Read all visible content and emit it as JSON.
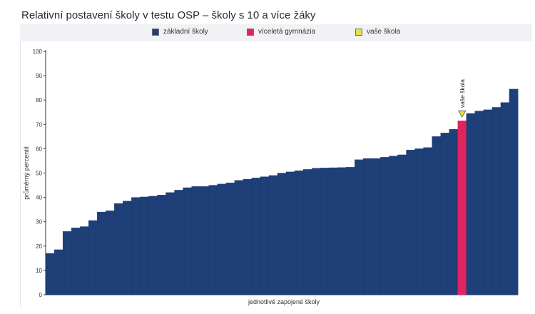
{
  "chart_data": {
    "type": "bar",
    "title": "Relativní postavení školy v testu OSP – školy s 10 a více žáky",
    "xlabel": "jednotlivé zapojené školy",
    "ylabel": "průměrný percentil",
    "ylim": [
      0,
      100
    ],
    "yticks": [
      0,
      10,
      20,
      30,
      40,
      50,
      60,
      70,
      80,
      90,
      100
    ],
    "legend": [
      {
        "label": "základní školy",
        "color": "#1f3f78"
      },
      {
        "label": "víceletá gymnázia",
        "color": "#e0245e"
      },
      {
        "label": "vaše škola",
        "color": "#e6e23a"
      }
    ],
    "annotation": "vaše škola",
    "series": [
      {
        "colors_by_type": {
          "zs": "#1f3f78",
          "gym": "#e0245e"
        },
        "values": [
          17,
          18.5,
          26,
          27.5,
          28,
          30.5,
          34,
          34.5,
          37.5,
          38.5,
          40,
          40.2,
          40.5,
          41,
          42,
          43,
          44,
          44.5,
          44.5,
          45,
          45.5,
          46,
          47,
          47.5,
          48,
          48.5,
          49,
          50,
          50.5,
          51,
          51.5,
          52,
          52.1,
          52.2,
          52.3,
          52.4,
          55.5,
          56,
          56,
          56.5,
          57,
          57.5,
          59.5,
          60,
          60.5,
          65,
          66.5,
          68,
          71.5,
          74.5,
          75.5,
          76,
          77,
          79,
          84.5
        ],
        "types": [
          "zs",
          "zs",
          "zs",
          "zs",
          "zs",
          "zs",
          "zs",
          "zs",
          "zs",
          "zs",
          "zs",
          "zs",
          "zs",
          "zs",
          "zs",
          "zs",
          "zs",
          "zs",
          "zs",
          "zs",
          "zs",
          "zs",
          "zs",
          "zs",
          "zs",
          "zs",
          "zs",
          "zs",
          "zs",
          "zs",
          "zs",
          "zs",
          "zs",
          "zs",
          "zs",
          "zs",
          "zs",
          "zs",
          "zs",
          "zs",
          "zs",
          "zs",
          "zs",
          "zs",
          "zs",
          "zs",
          "zs",
          "zs",
          "gym",
          "zs",
          "zs",
          "zs",
          "zs",
          "zs",
          "zs"
        ],
        "highlight_index": 48
      }
    ]
  }
}
